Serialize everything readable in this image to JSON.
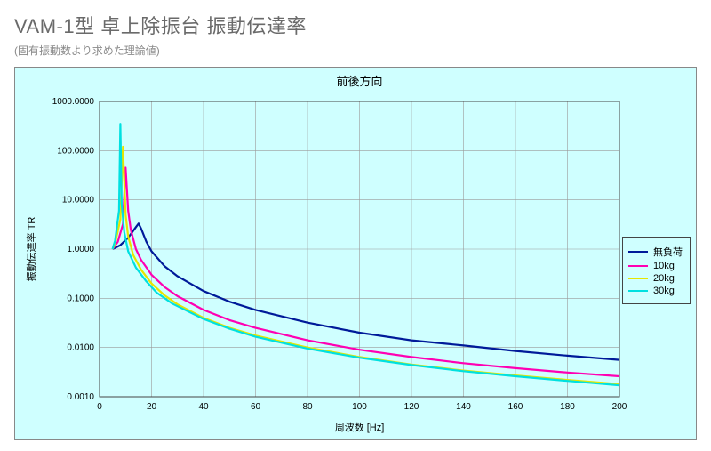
{
  "page_title": "VAM-1型 卓上除振台 振動伝達率",
  "subtitle": "(固有振動数より求めた理論値)",
  "chart": {
    "type": "line",
    "title": "前後方向",
    "xlabel": "周波数 [Hz]",
    "ylabel": "振動伝達率 TR",
    "background_color": "#cfffff",
    "plot_background": "#cfffff",
    "grid_color": "#9a9a9a",
    "border_color": "#444444",
    "xlim": [
      0,
      200
    ],
    "xtick_step": 20,
    "xticks": [
      0,
      20,
      40,
      60,
      80,
      100,
      120,
      140,
      160,
      180,
      200
    ],
    "yscale": "log",
    "ylim": [
      0.001,
      1000
    ],
    "yticks": [
      0.001,
      0.01,
      0.1,
      1,
      10,
      100,
      1000
    ],
    "ytick_labels": [
      "0.0010",
      "0.0100",
      "0.1000",
      "1.0000",
      "10.0000",
      "100.0000",
      "1000.0000"
    ],
    "title_fontsize": 13,
    "label_fontsize": 11,
    "tick_fontsize": 10,
    "line_width": 2.2,
    "series": [
      {
        "name": "無負荷",
        "color": "#001a99",
        "x": [
          5,
          8,
          11,
          14,
          15,
          16,
          18,
          20,
          25,
          30,
          40,
          50,
          60,
          80,
          100,
          120,
          140,
          160,
          180,
          200
        ],
        "y": [
          1.0,
          1.2,
          1.7,
          2.8,
          3.3,
          2.6,
          1.4,
          0.9,
          0.45,
          0.28,
          0.14,
          0.085,
          0.058,
          0.032,
          0.02,
          0.014,
          0.011,
          0.0085,
          0.0068,
          0.0056
        ]
      },
      {
        "name": "10kg",
        "color": "#ff00b3",
        "x": [
          5,
          7,
          9,
          10,
          11,
          12,
          14,
          16,
          20,
          25,
          30,
          40,
          50,
          60,
          80,
          100,
          120,
          140,
          160,
          180,
          200
        ],
        "y": [
          1.0,
          1.4,
          3.2,
          45,
          6.0,
          2.5,
          1.0,
          0.6,
          0.3,
          0.17,
          0.11,
          0.058,
          0.036,
          0.025,
          0.014,
          0.009,
          0.0064,
          0.0048,
          0.0038,
          0.0031,
          0.0026
        ]
      },
      {
        "name": "20kg",
        "color": "#e6e600",
        "x": [
          5,
          6,
          8,
          9,
          10,
          11,
          13,
          16,
          20,
          25,
          30,
          40,
          50,
          60,
          80,
          100,
          120,
          140,
          160,
          180,
          200
        ],
        "y": [
          1.0,
          1.3,
          4.0,
          120,
          5.0,
          1.8,
          0.75,
          0.38,
          0.2,
          0.115,
          0.075,
          0.04,
          0.025,
          0.0175,
          0.01,
          0.0064,
          0.0045,
          0.0034,
          0.0027,
          0.0022,
          0.0018
        ]
      },
      {
        "name": "30kg",
        "color": "#00e0e0",
        "x": [
          5,
          6,
          7.5,
          8,
          8.5,
          9.5,
          11,
          14,
          18,
          22,
          28,
          40,
          50,
          60,
          80,
          100,
          120,
          140,
          160,
          180,
          200
        ],
        "y": [
          1.0,
          1.5,
          6.0,
          350,
          8.0,
          2.2,
          0.9,
          0.42,
          0.22,
          0.13,
          0.078,
          0.038,
          0.024,
          0.0165,
          0.0095,
          0.0062,
          0.0044,
          0.0033,
          0.0026,
          0.0021,
          0.0017
        ]
      }
    ]
  }
}
